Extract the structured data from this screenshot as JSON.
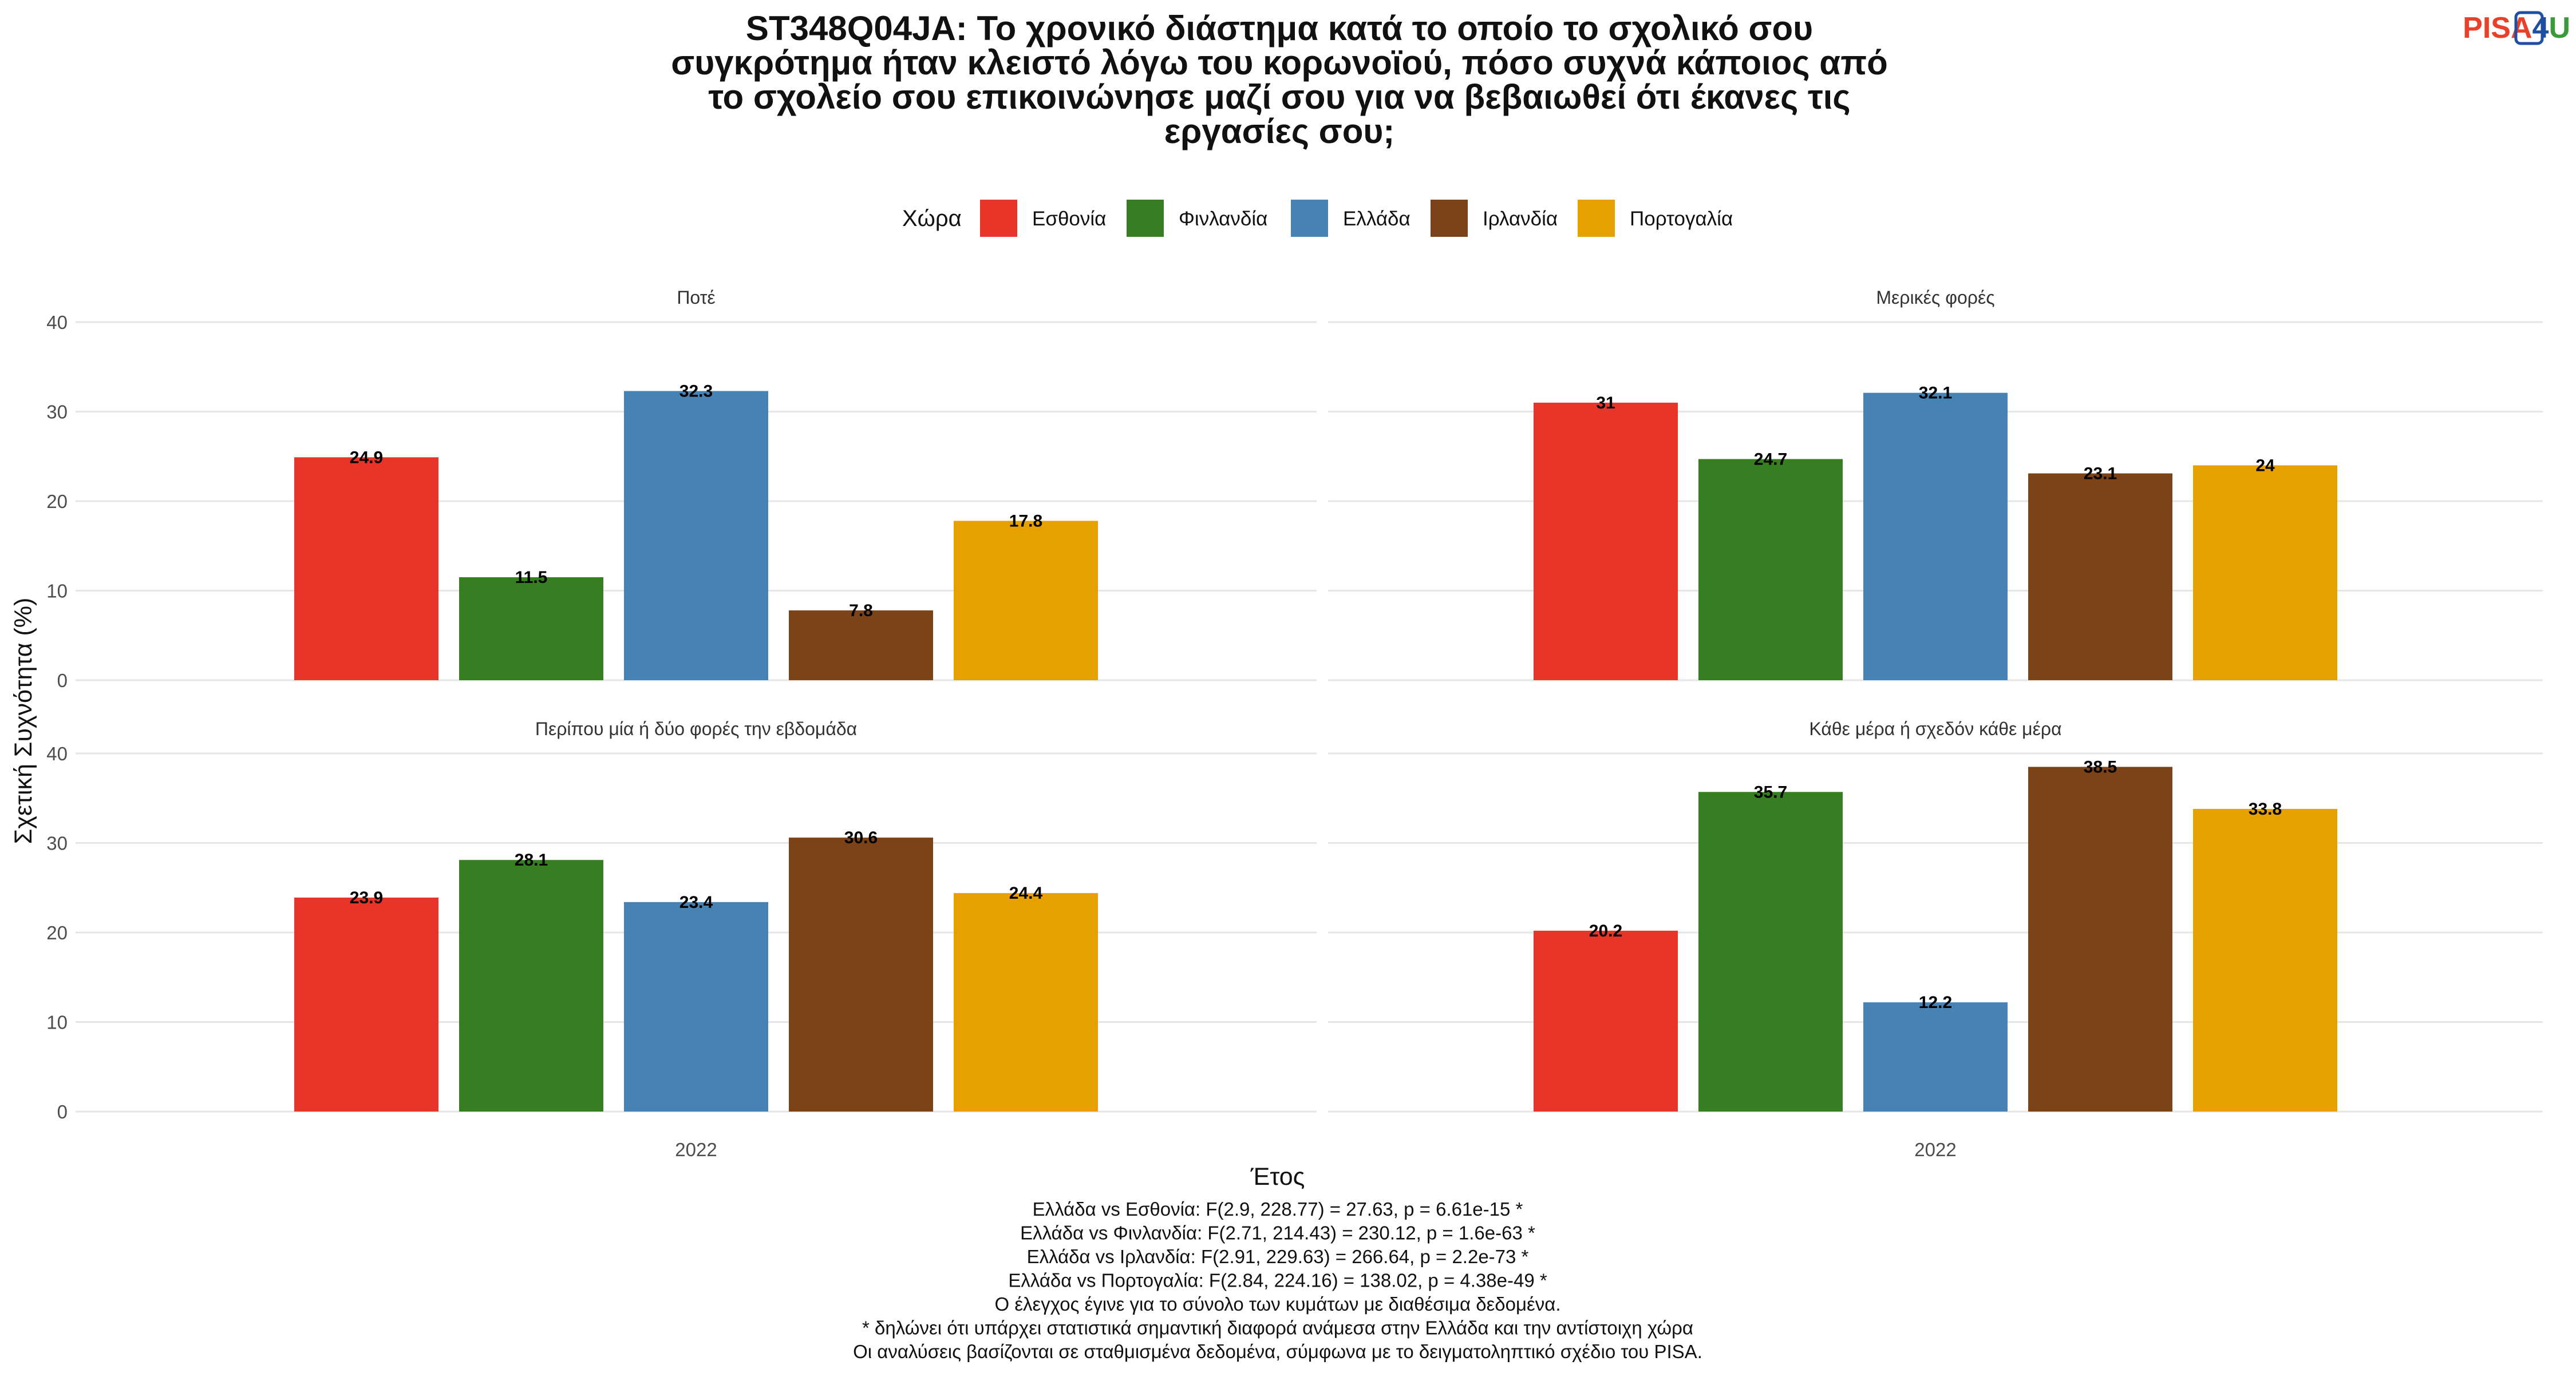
{
  "logo": {
    "part1": "PISA",
    "part2": "4",
    "part3": "U",
    "color1": "#e8402a",
    "color2": "#1e4fa0",
    "color3": "#3a9a3a"
  },
  "chart_data": {
    "type": "bar",
    "title_lines": [
      "ST348Q04JA: Το χρονικό διάστημα κατά το οποίο το σχολικό σου",
      "συγκρότημα ήταν κλειστό λόγω του κορωνοϊού, πόσο συχνά κάποιος από",
      "το σχολείο σου επικοινώνησε μαζί σου για να βεβαιωθεί ότι έκανες τις",
      "εργασίες σου;"
    ],
    "legend_title": "Χώρα",
    "legend_position": "top",
    "series": [
      {
        "name": "Εσθονία",
        "color": "#e8352a"
      },
      {
        "name": "Φινλανδία",
        "color": "#377e22"
      },
      {
        "name": "Ελλάδα",
        "color": "#4682b4"
      },
      {
        "name": "Ιρλανδία",
        "color": "#7b4317"
      },
      {
        "name": "Πορτογαλία",
        "color": "#e6a000"
      }
    ],
    "xlabel": "Έτος",
    "ylabel": "Σχετική Συχνότητα (%)",
    "ylim": [
      0,
      40
    ],
    "yticks": [
      "0",
      "10",
      "20",
      "30",
      "40"
    ],
    "grid": true,
    "panels": [
      {
        "strip": "Ποτέ",
        "category": "2022",
        "values": [
          24.9,
          11.5,
          32.3,
          7.8,
          17.8
        ],
        "labels": [
          "24.9",
          "11.5",
          "32.3",
          "7.8",
          "17.8"
        ]
      },
      {
        "strip": "Μερικές φορές",
        "category": "2022",
        "values": [
          31,
          24.7,
          32.1,
          23.1,
          24
        ],
        "labels": [
          "31",
          "24.7",
          "32.1",
          "23.1",
          "24"
        ]
      },
      {
        "strip": "Περίπου μία ή δύο φορές την εβδομάδα",
        "category": "2022",
        "values": [
          23.9,
          28.1,
          23.4,
          30.6,
          24.4
        ],
        "labels": [
          "23.9",
          "28.1",
          "23.4",
          "30.6",
          "24.4"
        ]
      },
      {
        "strip": "Κάθε μέρα ή σχεδόν κάθε μέρα",
        "category": "2022",
        "values": [
          20.2,
          35.7,
          12.2,
          38.5,
          33.8
        ],
        "labels": [
          "20.2",
          "35.7",
          "12.2",
          "38.5",
          "33.8"
        ]
      }
    ],
    "caption_lines": [
      "Ελλάδα vs Εσθονία: F(2.9, 228.77) = 27.63, p = 6.61e-15 *",
      "Ελλάδα vs Φινλανδία: F(2.71, 214.43) = 230.12, p = 1.6e-63 *",
      "Ελλάδα vs Ιρλανδία: F(2.91, 229.63) = 266.64, p = 2.2e-73 *",
      "Ελλάδα vs Πορτογαλία: F(2.84, 224.16) = 138.02, p = 4.38e-49 *",
      "Ο έλεγχος έγινε για το σύνολο των κυμάτων με διαθέσιμα δεδομένα.",
      "* δηλώνει ότι υπάρχει στατιστικά σημαντική διαφορά ανάμεσα στην Ελλάδα και την αντίστοιχη χώρα",
      "Οι αναλύσεις βασίζονται σε σταθμισμένα δεδομένα, σύμφωνα με το δειγματοληπτικό σχέδιο του PISA."
    ]
  }
}
